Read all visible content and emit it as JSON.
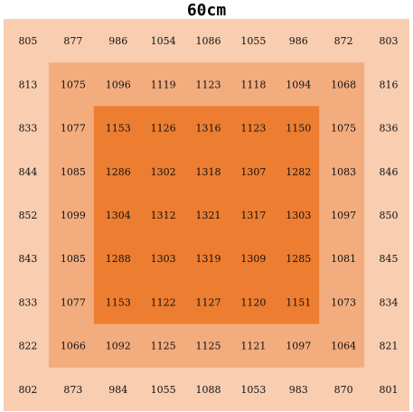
{
  "chart_data": {
    "type": "heatmap",
    "title": "60cm",
    "rows": [
      [
        805,
        877,
        986,
        1054,
        1086,
        1055,
        986,
        872,
        803
      ],
      [
        813,
        1075,
        1096,
        1119,
        1123,
        1118,
        1094,
        1068,
        816
      ],
      [
        833,
        1077,
        1153,
        1126,
        1316,
        1123,
        1150,
        1075,
        836
      ],
      [
        844,
        1085,
        1286,
        1302,
        1318,
        1307,
        1282,
        1083,
        846
      ],
      [
        852,
        1099,
        1304,
        1312,
        1321,
        1317,
        1303,
        1097,
        850
      ],
      [
        843,
        1085,
        1288,
        1303,
        1319,
        1309,
        1285,
        1081,
        845
      ],
      [
        833,
        1077,
        1153,
        1122,
        1127,
        1120,
        1151,
        1073,
        834
      ],
      [
        822,
        1066,
        1092,
        1125,
        1125,
        1121,
        1097,
        1064,
        821
      ],
      [
        802,
        873,
        984,
        1055,
        1088,
        1053,
        983,
        870,
        801
      ]
    ],
    "zones": {
      "outer": "#f8cdb0",
      "middle": "#f3ac7e",
      "inner": "#ed7d31"
    }
  }
}
